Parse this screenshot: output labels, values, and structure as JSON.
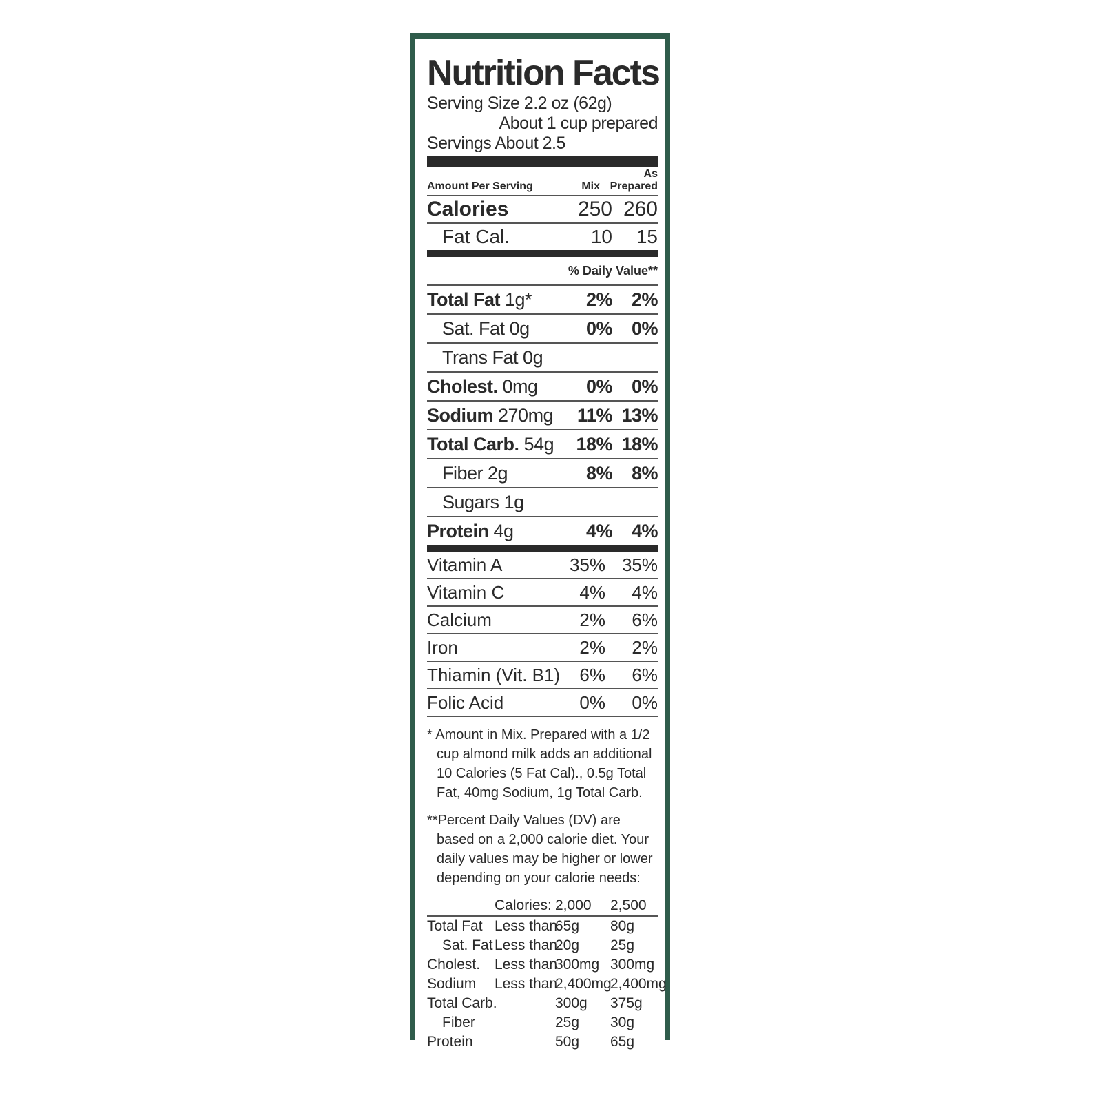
{
  "title": "Nutrition Facts",
  "serving_size": "Serving Size 2.2 oz (62g)",
  "serving_note": "About 1 cup prepared",
  "servings": "Servings About 2.5",
  "header": {
    "amount": "Amount Per Serving",
    "mix": "Mix",
    "prepared_top": "As",
    "prepared": "Prepared"
  },
  "calories": {
    "label": "Calories",
    "mix": "250",
    "prepared": "260"
  },
  "fat_cal": {
    "label": "Fat Cal.",
    "mix": "10",
    "prepared": "15"
  },
  "dv_header": "% Daily Value**",
  "nutrients": [
    {
      "name": "Total Fat",
      "amount": "1g*",
      "mix": "2%",
      "prepared": "2%",
      "indent": false
    },
    {
      "name": "Sat. Fat",
      "amount": "0g",
      "mix": "0%",
      "prepared": "0%",
      "indent": true
    },
    {
      "name": "Trans Fat",
      "amount": "0g",
      "indent": true
    },
    {
      "name": "Cholest.",
      "amount": "0mg",
      "mix": "0%",
      "prepared": "0%",
      "indent": false
    },
    {
      "name": "Sodium",
      "amount": "270mg",
      "mix": "11%",
      "prepared": "13%",
      "indent": false
    },
    {
      "name": "Total Carb.",
      "amount": "54g",
      "mix": "18%",
      "prepared": "18%",
      "indent": false
    },
    {
      "name": "Fiber",
      "amount": "2g",
      "mix": "8%",
      "prepared": "8%",
      "indent": true
    },
    {
      "name": "Sugars",
      "amount": "1g",
      "indent": true
    },
    {
      "name": "Protein",
      "amount": "4g",
      "mix": "4%",
      "prepared": "4%",
      "indent": false
    }
  ],
  "vitamins": [
    {
      "name": "Vitamin A",
      "mix": "35%",
      "prepared": "35%"
    },
    {
      "name": "Vitamin C",
      "mix": "4%",
      "prepared": "4%"
    },
    {
      "name": "Calcium",
      "mix": "2%",
      "prepared": "6%"
    },
    {
      "name": "Iron",
      "mix": "2%",
      "prepared": "2%"
    },
    {
      "name": "Thiamin (Vit. B1)",
      "mix": "6%",
      "prepared": "6%"
    },
    {
      "name": "Folic Acid",
      "mix": "0%",
      "prepared": "0%"
    }
  ],
  "footnote_1": "* Amount in Mix. Prepared with a 1/2 cup almond milk adds an additional 10 Calories (5 Fat Cal)., 0.5g Total Fat, 40mg Sodium, 1g Total Carb.",
  "footnote_2": "**Percent Daily Values (DV) are based on a 2,000 calorie diet. Your daily values may be higher or lower depending on your calorie needs:",
  "dv_table": {
    "header": [
      "Calories:",
      "2,000",
      "2,500"
    ],
    "rows": [
      [
        "Total Fat",
        "Less than",
        "65g",
        "80g"
      ],
      [
        "Sat. Fat",
        "Less than",
        "20g",
        "25g"
      ],
      [
        "Cholest.",
        "Less than",
        "300mg",
        "300mg"
      ],
      [
        "Sodium",
        "Less than",
        "2,400mg",
        "2,400mg"
      ],
      [
        "Total Carb.",
        "",
        "300g",
        "375g"
      ],
      [
        "Fiber",
        "",
        "25g",
        "30g"
      ],
      [
        "Protein",
        "",
        "50g",
        "65g"
      ]
    ]
  }
}
